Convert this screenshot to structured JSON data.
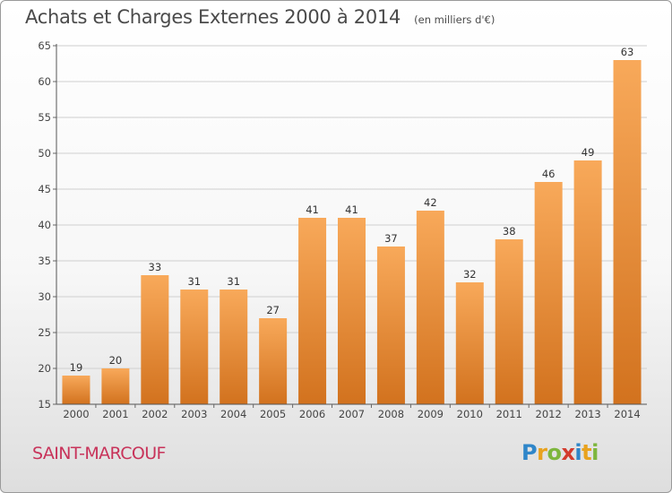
{
  "title": "Achats et Charges Externes 2000 à 2014",
  "unit": "(en milliers d'€)",
  "town": "SAINT-MARCOUF",
  "logo": {
    "letters": [
      "P",
      "r",
      "o",
      "x",
      "i",
      "t",
      "i"
    ],
    "colors": [
      "#2f86c9",
      "#e8a21e",
      "#7db63d",
      "#d33a2c",
      "#2f86c9",
      "#e8a21e",
      "#7db63d"
    ]
  },
  "colors": {
    "bar_light": "#f8a95a",
    "bar_dark": "#d2721e",
    "title": "#4a4a4a",
    "town": "#c8335a"
  },
  "chart_data": {
    "type": "bar",
    "categories": [
      "2000",
      "2001",
      "2002",
      "2003",
      "2004",
      "2005",
      "2006",
      "2007",
      "2008",
      "2009",
      "2010",
      "2011",
      "2012",
      "2013",
      "2014"
    ],
    "values": [
      19,
      20,
      33,
      31,
      31,
      27,
      41,
      41,
      37,
      42,
      32,
      38,
      46,
      49,
      63
    ],
    "title": "Achats et Charges Externes 2000 à 2014",
    "xlabel": "",
    "ylabel": "",
    "ylim": [
      15,
      65
    ],
    "yticks": [
      15,
      20,
      25,
      30,
      35,
      40,
      45,
      50,
      55,
      60,
      65
    ],
    "grid": true,
    "data_labels": true
  }
}
